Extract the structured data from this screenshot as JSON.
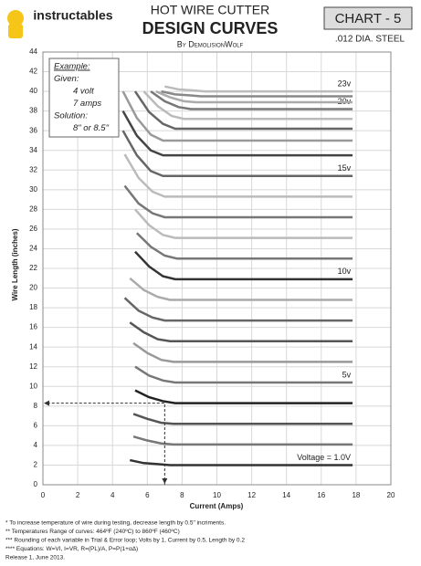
{
  "chart_data": {
    "type": "line",
    "logo_text": "instructables",
    "title": "HOT WIRE CUTTER",
    "subtitle": "DESIGN CURVES",
    "author": "By DemolisionWolf",
    "chart_label": "CHART  - 5",
    "wire": ".012 DIA. STEEL",
    "xlabel": "Current (Amps)",
    "ylabel": "Wire Length (inches)",
    "xlim": [
      0,
      20
    ],
    "xticks": [
      0,
      2,
      4,
      6,
      8,
      10,
      12,
      14,
      16,
      18,
      20
    ],
    "ylim": [
      0,
      44
    ],
    "yticks": [
      0,
      2,
      4,
      6,
      8,
      10,
      12,
      14,
      16,
      18,
      20,
      22,
      24,
      26,
      28,
      30,
      32,
      34,
      36,
      38,
      40,
      42,
      44
    ],
    "grid": true,
    "example": [
      "Example:",
      "Given:",
      "4 volt",
      "7 amps",
      "Solution:",
      "8\" or 8.5\""
    ],
    "guide": {
      "x": 7,
      "y": 8.3
    },
    "series": [
      {
        "label": "Voltage = 1.0V",
        "color": "#333333",
        "x": [
          5.0,
          5.8,
          6.6,
          7.3,
          17.8
        ],
        "values": [
          2.5,
          2.2,
          2.1,
          2.0,
          2.0
        ]
      },
      {
        "color": "#777777",
        "x": [
          5.2,
          6.0,
          6.8,
          7.5,
          17.8
        ],
        "values": [
          4.9,
          4.5,
          4.2,
          4.1,
          4.1
        ]
      },
      {
        "color": "#555555",
        "x": [
          5.2,
          6.0,
          6.8,
          7.5,
          17.8
        ],
        "values": [
          7.2,
          6.7,
          6.3,
          6.2,
          6.2
        ]
      },
      {
        "color": "#222222",
        "x": [
          5.3,
          6.1,
          6.9,
          7.6,
          17.8
        ],
        "values": [
          9.6,
          8.9,
          8.5,
          8.3,
          8.3
        ]
      },
      {
        "label": "5v",
        "color": "#777777",
        "x": [
          5.3,
          6.1,
          6.9,
          7.6,
          17.8
        ],
        "values": [
          12.0,
          11.1,
          10.6,
          10.4,
          10.4
        ]
      },
      {
        "color": "#999999",
        "x": [
          5.2,
          6.0,
          6.8,
          7.5,
          17.8
        ],
        "values": [
          14.4,
          13.4,
          12.7,
          12.5,
          12.5
        ]
      },
      {
        "color": "#555555",
        "x": [
          5.0,
          5.8,
          6.6,
          7.3,
          17.8
        ],
        "values": [
          16.5,
          15.5,
          14.8,
          14.6,
          14.6
        ]
      },
      {
        "color": "#666666",
        "x": [
          4.7,
          5.5,
          6.3,
          7.0,
          17.8
        ],
        "values": [
          19.0,
          17.7,
          17.0,
          16.7,
          16.7
        ]
      },
      {
        "color": "#aaaaaa",
        "x": [
          5.0,
          5.8,
          6.6,
          7.3,
          17.8
        ],
        "values": [
          21.0,
          19.8,
          19.1,
          18.8,
          18.8
        ]
      },
      {
        "label": "10v",
        "color": "#333333",
        "x": [
          5.3,
          6.1,
          6.9,
          7.6,
          17.8
        ],
        "values": [
          23.7,
          22.2,
          21.2,
          20.9,
          20.9
        ]
      },
      {
        "color": "#777777",
        "x": [
          5.4,
          6.2,
          7.0,
          7.7,
          17.8
        ],
        "values": [
          25.6,
          24.2,
          23.3,
          23.0,
          23.0
        ]
      },
      {
        "color": "#bbbbbb",
        "x": [
          5.3,
          6.1,
          6.9,
          7.6,
          17.8
        ],
        "values": [
          28.0,
          26.4,
          25.4,
          25.1,
          25.1
        ]
      },
      {
        "color": "#777777",
        "x": [
          4.7,
          5.5,
          6.3,
          7.0,
          17.8
        ],
        "values": [
          30.4,
          28.6,
          27.6,
          27.2,
          27.2
        ]
      },
      {
        "color": "#bbbbbb",
        "x": [
          4.7,
          5.5,
          6.3,
          7.0,
          17.8
        ],
        "values": [
          33.6,
          31.2,
          29.8,
          29.3,
          29.3
        ]
      },
      {
        "label": "15v",
        "color": "#666666",
        "x": [
          4.6,
          5.4,
          6.2,
          6.9,
          17.8
        ],
        "values": [
          36.0,
          33.5,
          31.9,
          31.4,
          31.4
        ]
      },
      {
        "color": "#444444",
        "x": [
          4.6,
          5.4,
          6.2,
          6.9,
          17.8
        ],
        "values": [
          38.0,
          35.5,
          34.0,
          33.5,
          33.5
        ]
      },
      {
        "color": "#999999",
        "x": [
          4.6,
          5.4,
          6.2,
          6.9,
          17.8
        ],
        "values": [
          40.0,
          37.3,
          35.6,
          35.0,
          35.0
        ]
      },
      {
        "color": "#666666",
        "x": [
          5.3,
          6.1,
          6.9,
          7.6,
          17.8
        ],
        "values": [
          40.0,
          37.9,
          36.7,
          36.2,
          36.2
        ]
      },
      {
        "color": "#bbbbbb",
        "x": [
          5.8,
          6.6,
          7.4,
          8.1,
          17.8
        ],
        "values": [
          40.0,
          38.5,
          37.5,
          37.2,
          37.2
        ]
      },
      {
        "label": "20v",
        "color": "#777777",
        "x": [
          6.2,
          7.0,
          7.8,
          8.5,
          17.8
        ],
        "values": [
          40.0,
          39.0,
          38.4,
          38.2,
          38.2
        ]
      },
      {
        "color": "#aaaaaa",
        "x": [
          6.5,
          7.3,
          8.1,
          8.8,
          17.8
        ],
        "values": [
          40.0,
          39.4,
          39.0,
          38.9,
          38.9
        ]
      },
      {
        "color": "#888888",
        "x": [
          6.8,
          7.6,
          8.4,
          9.1,
          17.8
        ],
        "values": [
          40.0,
          39.7,
          39.6,
          39.5,
          39.5
        ]
      },
      {
        "label": "23v",
        "color": "#bbbbbb",
        "x": [
          7.0,
          7.8,
          8.6,
          9.3,
          17.8
        ],
        "values": [
          40.5,
          40.2,
          40.1,
          40.0,
          40.0
        ]
      }
    ],
    "footnotes": [
      "*      To increase temperature of wire during testing, decrease length by 0.5\" incriments.",
      "**     Temperatures Range of curves: 464ºF (240ºC) to 860ºF (460ºC)",
      "***    Rounding of each variable in Trial & Error loop; Volts by 1, Current by 0.5, Length by 0.2",
      "****  Equations: W=VI, I=VR, R=(PL)/A, P=P(1+αΔ)",
      "Release 1, June 2013."
    ]
  }
}
